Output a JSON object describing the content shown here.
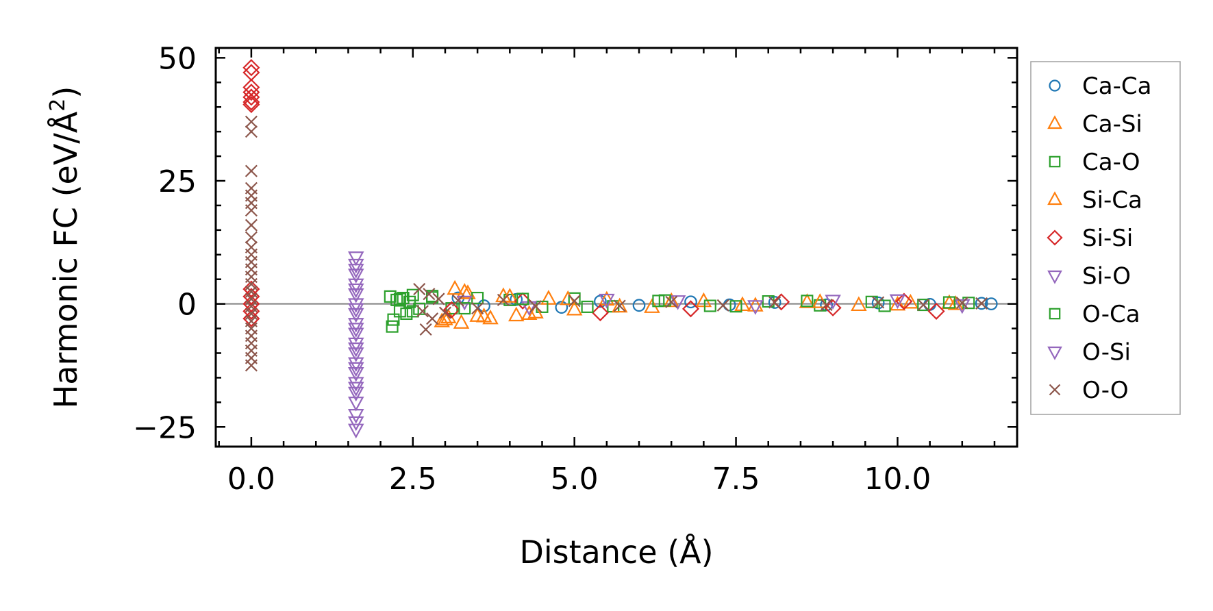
{
  "chart_data": {
    "type": "scatter",
    "title": "",
    "xlabel": "Distance (Å)",
    "ylabel_main": "Harmonic FC (eV/Å",
    "ylabel_sup": "2",
    "ylabel_close": ")",
    "xlim": [
      -0.55,
      11.85
    ],
    "ylim": [
      -29,
      52
    ],
    "xticks": [
      0.0,
      2.5,
      5.0,
      7.5,
      10.0
    ],
    "xtick_labels": [
      "0.0",
      "2.5",
      "5.0",
      "7.5",
      "10.0"
    ],
    "yticks": [
      -25,
      0,
      25,
      50
    ],
    "ytick_labels": [
      "−25",
      "0",
      "25",
      "50"
    ],
    "zero_line": 0,
    "grid": false,
    "legend_position": "outside-right",
    "series": [
      {
        "name": "Ca-Ca",
        "marker": "circle",
        "color": "#1f77b4",
        "points": [
          [
            3.2,
            1.2
          ],
          [
            3.6,
            -0.4
          ],
          [
            4.1,
            0.9
          ],
          [
            4.8,
            -0.7
          ],
          [
            5.4,
            0.5
          ],
          [
            6.0,
            -0.3
          ],
          [
            6.8,
            0.4
          ],
          [
            7.4,
            -0.2
          ],
          [
            8.1,
            0.3
          ],
          [
            8.9,
            -0.2
          ],
          [
            9.7,
            0.2
          ],
          [
            10.5,
            -0.1
          ],
          [
            11.3,
            0.1
          ],
          [
            11.45,
            0.0
          ]
        ]
      },
      {
        "name": "Ca-Si",
        "marker": "triangle-up",
        "color": "#ff7f0e",
        "points": [
          [
            2.95,
            -3.6
          ],
          [
            3.05,
            -2.8
          ],
          [
            3.15,
            3.0
          ],
          [
            3.25,
            -3.9
          ],
          [
            3.35,
            2.1
          ],
          [
            3.5,
            -2.5
          ],
          [
            3.7,
            -3.0
          ],
          [
            3.9,
            1.5
          ],
          [
            4.1,
            -2.4
          ],
          [
            4.3,
            -2.1
          ],
          [
            4.6,
            1.0
          ],
          [
            5.0,
            -1.2
          ],
          [
            5.5,
            0.8
          ],
          [
            6.2,
            -0.7
          ],
          [
            7.0,
            0.5
          ],
          [
            7.8,
            -0.4
          ],
          [
            8.6,
            0.3
          ],
          [
            9.4,
            -0.3
          ],
          [
            10.2,
            0.2
          ],
          [
            10.9,
            -0.1
          ]
        ]
      },
      {
        "name": "Ca-O",
        "marker": "square",
        "color": "#2ca02c",
        "points": [
          [
            2.15,
            1.5
          ],
          [
            2.18,
            -4.6
          ],
          [
            2.2,
            -3.2
          ],
          [
            2.25,
            0.8
          ],
          [
            2.3,
            -1.5
          ],
          [
            2.35,
            1.2
          ],
          [
            2.4,
            -2.0
          ],
          [
            2.45,
            0.4
          ],
          [
            2.5,
            1.8
          ],
          [
            2.6,
            -1.0
          ],
          [
            2.8,
            1.6
          ],
          [
            3.1,
            -0.9
          ],
          [
            3.5,
            1.2
          ],
          [
            4.0,
            0.8
          ],
          [
            4.5,
            -0.6
          ],
          [
            5.0,
            1.1
          ],
          [
            5.6,
            -0.5
          ],
          [
            6.3,
            0.6
          ],
          [
            7.1,
            -0.4
          ],
          [
            8.0,
            0.5
          ],
          [
            8.8,
            -0.3
          ],
          [
            9.6,
            0.4
          ],
          [
            10.4,
            -0.2
          ],
          [
            11.1,
            0.2
          ]
        ]
      },
      {
        "name": "Si-Ca",
        "marker": "triangle-up",
        "color": "#ff7f0e",
        "points": [
          [
            3.0,
            -3.2
          ],
          [
            3.3,
            2.4
          ],
          [
            3.6,
            -2.6
          ],
          [
            4.0,
            1.4
          ],
          [
            4.4,
            -1.8
          ],
          [
            4.9,
            0.9
          ],
          [
            5.7,
            -0.6
          ],
          [
            6.5,
            0.5
          ],
          [
            7.6,
            -0.3
          ],
          [
            8.8,
            0.3
          ],
          [
            10.0,
            -0.2
          ],
          [
            10.8,
            0.1
          ]
        ]
      },
      {
        "name": "Si-Si",
        "marker": "diamond",
        "color": "#d62728",
        "points": [
          [
            0.0,
            48.0
          ],
          [
            0.0,
            47.0
          ],
          [
            0.0,
            44.0
          ],
          [
            0.0,
            43.0
          ],
          [
            0.0,
            42.0
          ],
          [
            0.0,
            41.0
          ],
          [
            0.0,
            40.5
          ],
          [
            0.0,
            3.0
          ],
          [
            0.0,
            1.5
          ],
          [
            0.0,
            0.0
          ],
          [
            0.0,
            -1.5
          ],
          [
            0.0,
            -3.0
          ],
          [
            3.1,
            -1.2
          ],
          [
            4.2,
            0.6
          ],
          [
            5.4,
            -1.8
          ],
          [
            6.8,
            -1.0
          ],
          [
            8.2,
            0.4
          ],
          [
            9.0,
            -0.8
          ],
          [
            10.1,
            0.5
          ],
          [
            10.6,
            -1.5
          ]
        ]
      },
      {
        "name": "Si-O",
        "marker": "triangle-down",
        "color": "#9467bd",
        "points": [
          [
            1.62,
            9.5
          ],
          [
            1.62,
            8.0
          ],
          [
            1.62,
            6.0
          ],
          [
            1.62,
            4.0
          ],
          [
            1.62,
            2.0
          ],
          [
            1.62,
            0.0
          ],
          [
            1.62,
            -2.0
          ],
          [
            1.62,
            -4.0
          ],
          [
            1.62,
            -6.0
          ],
          [
            1.62,
            -8.0
          ],
          [
            1.62,
            -10.0
          ],
          [
            1.62,
            -12.0
          ],
          [
            1.62,
            -14.0
          ],
          [
            1.62,
            -16.0
          ],
          [
            1.62,
            -18.0
          ],
          [
            1.62,
            -22.5
          ],
          [
            1.62,
            -24.0
          ],
          [
            1.62,
            -25.5
          ],
          [
            3.3,
            0.5
          ],
          [
            4.3,
            -0.6
          ],
          [
            5.5,
            0.9
          ],
          [
            6.6,
            0.6
          ],
          [
            7.8,
            -0.4
          ],
          [
            9.0,
            0.7
          ],
          [
            10.0,
            0.8
          ],
          [
            11.0,
            -0.2
          ]
        ]
      },
      {
        "name": "O-Ca",
        "marker": "square",
        "color": "#2ca02c",
        "points": [
          [
            2.3,
            1.0
          ],
          [
            2.5,
            -1.5
          ],
          [
            2.8,
            1.3
          ],
          [
            3.3,
            -0.9
          ],
          [
            4.2,
            1.0
          ],
          [
            5.2,
            -0.6
          ],
          [
            6.4,
            0.7
          ],
          [
            7.5,
            -0.5
          ],
          [
            8.6,
            0.6
          ],
          [
            9.8,
            -0.4
          ],
          [
            10.8,
            0.3
          ]
        ]
      },
      {
        "name": "O-Si",
        "marker": "triangle-down",
        "color": "#9467bd",
        "points": [
          [
            1.62,
            7.0
          ],
          [
            1.62,
            3.0
          ],
          [
            1.62,
            -1.0
          ],
          [
            1.62,
            -5.0
          ],
          [
            1.62,
            -9.0
          ],
          [
            1.62,
            -13.0
          ],
          [
            1.62,
            -17.0
          ],
          [
            1.62,
            -20.0
          ]
        ]
      },
      {
        "name": "O-O",
        "marker": "x",
        "color": "#8c564b",
        "points": [
          [
            0.0,
            37.0
          ],
          [
            0.0,
            35.0
          ],
          [
            0.0,
            27.0
          ],
          [
            0.0,
            23.5
          ],
          [
            0.0,
            22.0
          ],
          [
            0.0,
            20.5
          ],
          [
            0.0,
            19.0
          ],
          [
            0.0,
            16.0
          ],
          [
            0.0,
            13.5
          ],
          [
            0.0,
            11.5
          ],
          [
            0.0,
            10.0
          ],
          [
            0.0,
            8.5
          ],
          [
            0.0,
            7.0
          ],
          [
            0.0,
            5.5
          ],
          [
            0.0,
            4.0
          ],
          [
            0.0,
            2.5
          ],
          [
            0.0,
            1.0
          ],
          [
            0.0,
            -0.5
          ],
          [
            0.0,
            -2.0
          ],
          [
            0.0,
            -3.5
          ],
          [
            0.0,
            -5.0
          ],
          [
            0.0,
            -6.5
          ],
          [
            0.0,
            -8.0
          ],
          [
            0.0,
            -9.5
          ],
          [
            0.0,
            -11.0
          ],
          [
            0.0,
            -12.5
          ],
          [
            2.6,
            3.0
          ],
          [
            2.65,
            -1.5
          ],
          [
            2.7,
            -5.2
          ],
          [
            2.75,
            2.0
          ],
          [
            2.8,
            -3.0
          ],
          [
            2.9,
            1.0
          ],
          [
            3.0,
            -1.8
          ],
          [
            3.2,
            0.7
          ],
          [
            3.5,
            -0.9
          ],
          [
            3.9,
            0.8
          ],
          [
            4.4,
            -0.5
          ],
          [
            5.0,
            0.6
          ],
          [
            5.7,
            -0.4
          ],
          [
            6.5,
            0.4
          ],
          [
            7.3,
            -0.3
          ],
          [
            8.1,
            0.3
          ],
          [
            8.9,
            -0.2
          ],
          [
            9.7,
            0.3
          ],
          [
            10.4,
            -0.2
          ],
          [
            11.0,
            0.2
          ],
          [
            11.3,
            0.1
          ]
        ]
      }
    ]
  }
}
